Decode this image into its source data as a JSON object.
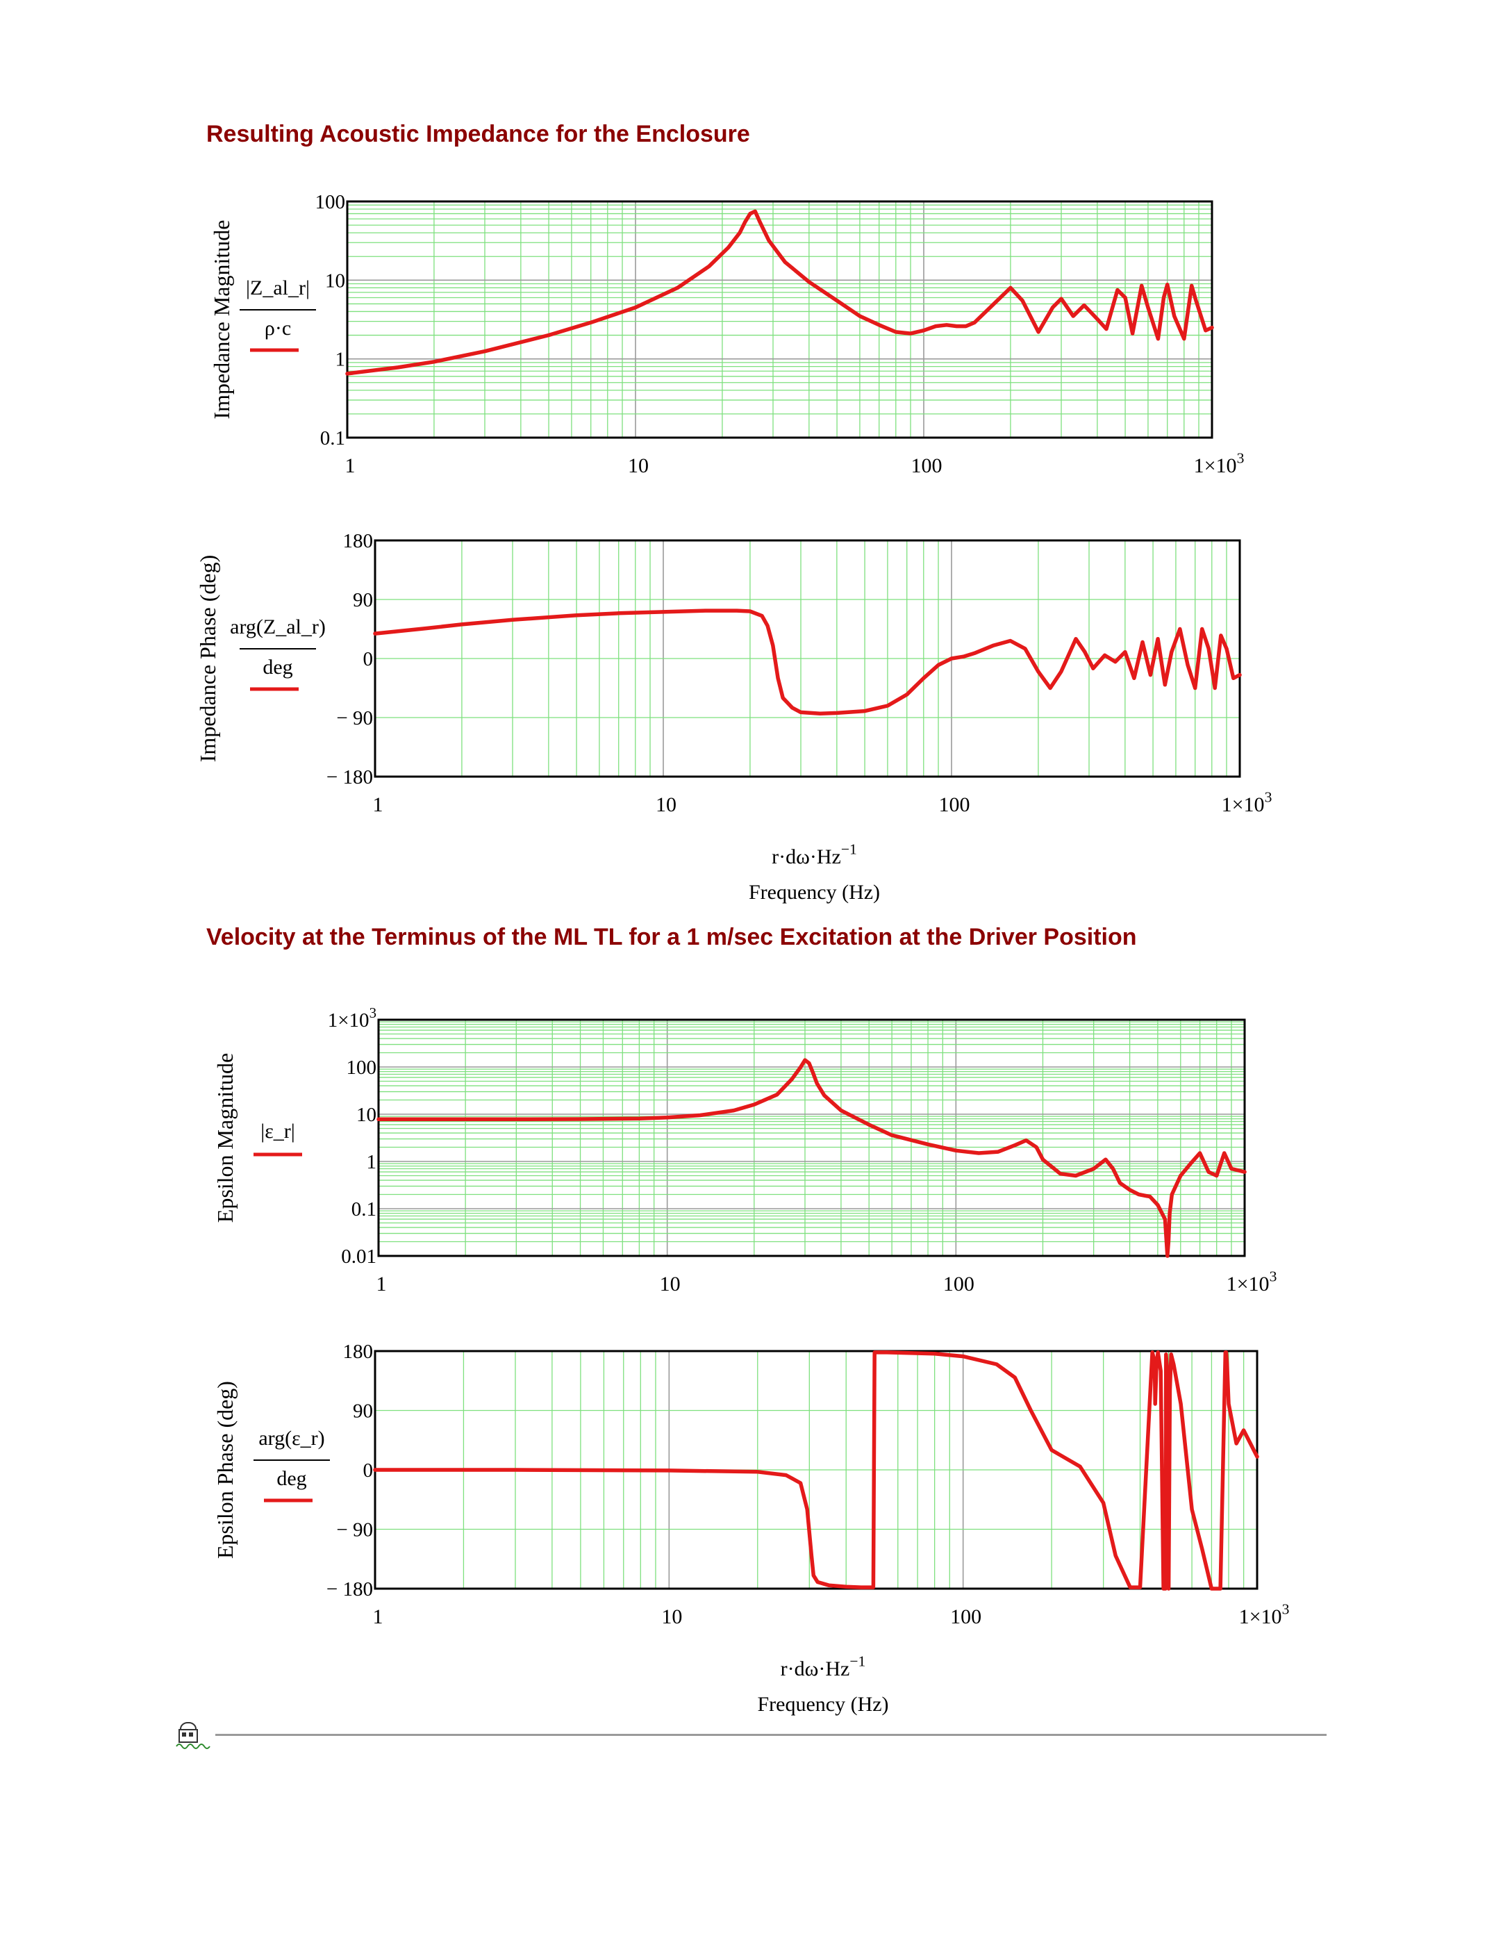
{
  "sections": [
    {
      "title": "Resulting Acoustic Impedance for the Enclosure"
    },
    {
      "title": "Velocity at the Terminus of the ML TL for a 1 m/sec Excitation at the Driver Position"
    }
  ],
  "footer": {
    "icon": "region-lock-icon"
  },
  "colors": {
    "trace": "#e41a1a",
    "grid_minor": "#7ee07e",
    "grid_major": "#9a9a9a",
    "heading": "#8b0000"
  },
  "chart_data": [
    {
      "type": "line",
      "ylabel": "Impedance Magnitude",
      "expr": {
        "numerator": "|Z_al_r|",
        "denominator": "ρ·c"
      },
      "xscale": "log",
      "yscale": "log",
      "xlim": [
        1,
        1000
      ],
      "ylim": [
        0.1,
        100
      ],
      "xticks": [
        "1",
        "10",
        "100",
        "1×10^3"
      ],
      "yticks": [
        "100",
        "10",
        "1",
        "0.1"
      ],
      "grid": true,
      "series": [
        {
          "color": "#e41a1a",
          "x": [
            1,
            1.5,
            2,
            3,
            5,
            7,
            10,
            14,
            18,
            21,
            23,
            24,
            25,
            26,
            27,
            29,
            33,
            40,
            50,
            60,
            70,
            80,
            90,
            100,
            110,
            120,
            130,
            140,
            150,
            170,
            200,
            220,
            250,
            280,
            300,
            330,
            360,
            400,
            430,
            470,
            500,
            530,
            570,
            600,
            650,
            680,
            700,
            740,
            800,
            850,
            880,
            950,
            1000
          ],
          "y": [
            0.65,
            0.78,
            0.92,
            1.25,
            2.0,
            2.9,
            4.5,
            8.0,
            15,
            26,
            40,
            55,
            70,
            75,
            55,
            32,
            17,
            9.5,
            5.5,
            3.5,
            2.7,
            2.2,
            2.1,
            2.3,
            2.6,
            2.7,
            2.6,
            2.6,
            2.9,
            4.5,
            8.0,
            5.5,
            2.2,
            4.5,
            5.8,
            3.5,
            4.8,
            3.2,
            2.4,
            7.5,
            6.0,
            2.1,
            8.5,
            4.5,
            1.8,
            6.0,
            8.8,
            3.5,
            1.8,
            8.5,
            5.5,
            2.3,
            2.5
          ]
        }
      ]
    },
    {
      "type": "line",
      "ylabel": "Impedance Phase (deg)",
      "expr": {
        "numerator": "arg(Z_al_r)",
        "denominator": "deg"
      },
      "xscale": "log",
      "yscale": "linear",
      "xlim": [
        1,
        1000
      ],
      "ylim": [
        -180,
        180
      ],
      "xticks": [
        "1",
        "10",
        "100",
        "1×10^3"
      ],
      "yticks": [
        "180",
        "90",
        "0",
        "− 90",
        "− 180"
      ],
      "xlabel_expr": "r·dω·Hz^−1",
      "xlabel": "Frequency (Hz)",
      "grid": true,
      "series": [
        {
          "color": "#e41a1a",
          "x": [
            1,
            1.5,
            2,
            3,
            5,
            7,
            10,
            14,
            18,
            20,
            22,
            23,
            24,
            25,
            26,
            28,
            30,
            35,
            40,
            50,
            60,
            70,
            80,
            90,
            100,
            110,
            120,
            140,
            160,
            180,
            200,
            220,
            240,
            270,
            290,
            310,
            340,
            370,
            400,
            430,
            460,
            490,
            520,
            550,
            580,
            620,
            660,
            700,
            740,
            780,
            820,
            860,
            900,
            950,
            1000
          ],
          "y": [
            38,
            46,
            52,
            59,
            66,
            69,
            71,
            73,
            73,
            72,
            65,
            50,
            20,
            -30,
            -60,
            -75,
            -82,
            -84,
            -83,
            -80,
            -72,
            -55,
            -30,
            -10,
            0,
            3,
            8,
            20,
            27,
            15,
            -20,
            -45,
            -20,
            30,
            10,
            -15,
            5,
            -5,
            10,
            -30,
            25,
            -25,
            30,
            -40,
            10,
            45,
            -10,
            -45,
            45,
            15,
            -45,
            35,
            15,
            -30,
            -25
          ]
        }
      ]
    },
    {
      "type": "line",
      "ylabel": "Epsilon Magnitude",
      "expr": {
        "numerator": "|ε_r|",
        "denominator": ""
      },
      "xscale": "log",
      "yscale": "log",
      "xlim": [
        1,
        1000
      ],
      "ylim": [
        0.01,
        1000
      ],
      "xticks": [
        "1",
        "10",
        "100",
        "1×10^3"
      ],
      "yticks": [
        "1×10^3",
        "100",
        "10",
        "1",
        "0.1",
        "0.01"
      ],
      "grid": true,
      "series": [
        {
          "color": "#e41a1a",
          "x": [
            1,
            2,
            3,
            5,
            8,
            10,
            13,
            17,
            20,
            24,
            27,
            29,
            30,
            31,
            32,
            33,
            35,
            40,
            50,
            60,
            80,
            100,
            120,
            140,
            160,
            175,
            190,
            200,
            230,
            260,
            300,
            330,
            350,
            370,
            400,
            430,
            470,
            500,
            530,
            540,
            545,
            550,
            560,
            600,
            650,
            700,
            750,
            800,
            850,
            900,
            1000
          ],
          "y": [
            7.8,
            7.8,
            7.8,
            7.9,
            8.1,
            8.5,
            9.5,
            12,
            16,
            26,
            55,
            100,
            140,
            120,
            75,
            45,
            25,
            12,
            6,
            3.6,
            2.3,
            1.7,
            1.5,
            1.6,
            2.2,
            2.8,
            2.0,
            1.1,
            0.55,
            0.5,
            0.7,
            1.1,
            0.7,
            0.35,
            0.25,
            0.2,
            0.18,
            0.12,
            0.06,
            0.01,
            0.02,
            0.08,
            0.2,
            0.5,
            0.9,
            1.5,
            0.6,
            0.5,
            1.5,
            0.7,
            0.6
          ]
        }
      ]
    },
    {
      "type": "line",
      "ylabel": "Epsilon Phase (deg)",
      "expr": {
        "numerator": "arg(ε_r)",
        "denominator": "deg"
      },
      "xscale": "log",
      "yscale": "linear",
      "xlim": [
        1,
        1000
      ],
      "ylim": [
        -180,
        180
      ],
      "xticks": [
        "1",
        "10",
        "100",
        "1×10^3"
      ],
      "yticks": [
        "180",
        "90",
        "0",
        "− 90",
        "− 180"
      ],
      "xlabel_expr": "r·dω·Hz^−1",
      "xlabel": "Frequency (Hz)",
      "grid": true,
      "series": [
        {
          "color": "#e41a1a",
          "x": [
            1,
            3,
            10,
            20,
            25,
            28,
            29.5,
            30.5,
            31,
            32,
            35,
            40,
            45,
            49,
            49.5,
            50,
            55,
            80,
            100,
            130,
            150,
            170,
            200,
            250,
            300,
            330,
            370,
            400,
            440,
            448,
            450,
            455,
            460,
            470,
            480,
            488,
            490,
            495,
            500,
            505,
            510,
            520,
            550,
            600,
            650,
            700,
            750,
            780,
            785,
            790,
            800,
            850,
            900,
            1000
          ],
          "y": [
            0,
            0,
            -1,
            -3,
            -8,
            -20,
            -60,
            -130,
            -160,
            -170,
            -175,
            -177,
            -178,
            -178,
            -178,
            178,
            178,
            176,
            172,
            160,
            140,
            90,
            30,
            5,
            -50,
            -130,
            -178,
            -178,
            178,
            165,
            100,
            160,
            178,
            150,
            -180,
            -180,
            175,
            150,
            -180,
            120,
            175,
            160,
            100,
            -60,
            -120,
            -180,
            -180,
            178,
            178,
            160,
            100,
            40,
            60,
            20
          ]
        }
      ]
    }
  ]
}
